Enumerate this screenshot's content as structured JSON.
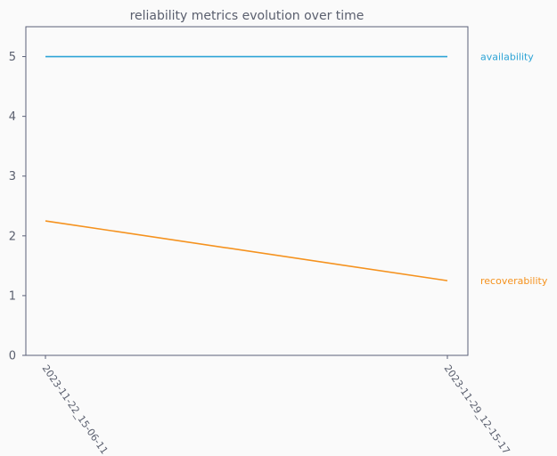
{
  "chart_data": {
    "type": "line",
    "title": "reliability metrics evolution over time",
    "xlabel": "",
    "ylabel": "",
    "categories": [
      "2023-11-22_15-06-11",
      "2023-11-29_12-15-17"
    ],
    "ylim": [
      0,
      5.5
    ],
    "yticks": [
      0,
      1,
      2,
      3,
      4,
      5
    ],
    "grid": false,
    "legend": "right-of-plot, inline end labels",
    "series": [
      {
        "name": "availability",
        "values": [
          5,
          5
        ],
        "color": "#2ea4d6"
      },
      {
        "name": "recoverability",
        "values": [
          2.25,
          1.25
        ],
        "color": "#f5921e"
      }
    ]
  }
}
